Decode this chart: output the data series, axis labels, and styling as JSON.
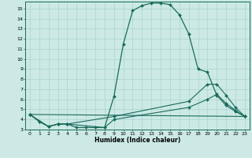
{
  "title": "",
  "xlabel": "Humidex (Indice chaleur)",
  "bg_color": "#cce9e6",
  "line_color": "#1a6b5a",
  "grid_color": "#aad4d0",
  "xlim": [
    -0.5,
    23.5
  ],
  "ylim": [
    3.0,
    15.7
  ],
  "yticks": [
    3,
    4,
    5,
    6,
    7,
    8,
    9,
    10,
    11,
    12,
    13,
    14,
    15
  ],
  "xticks": [
    0,
    1,
    2,
    3,
    4,
    5,
    6,
    7,
    8,
    9,
    10,
    11,
    12,
    13,
    14,
    15,
    16,
    17,
    18,
    19,
    20,
    21,
    22,
    23
  ],
  "curve1_x": [
    0,
    1,
    2,
    3,
    4,
    5,
    6,
    7,
    8,
    9,
    10,
    11,
    12,
    13,
    14,
    15,
    16,
    17,
    18,
    19,
    20,
    21,
    22,
    23
  ],
  "curve1_y": [
    4.5,
    3.8,
    3.3,
    3.55,
    3.55,
    3.2,
    3.2,
    3.2,
    3.2,
    6.3,
    11.5,
    14.8,
    15.3,
    15.55,
    15.55,
    15.4,
    14.4,
    12.5,
    9.0,
    8.7,
    6.4,
    5.4,
    4.8,
    4.3
  ],
  "curve2_x": [
    0,
    1,
    2,
    3,
    4,
    9,
    17,
    19,
    20,
    21,
    22,
    23
  ],
  "curve2_y": [
    4.5,
    3.8,
    3.3,
    3.55,
    3.55,
    4.3,
    5.8,
    7.5,
    7.5,
    6.4,
    5.2,
    4.3
  ],
  "curve3_x": [
    0,
    2,
    3,
    4,
    8,
    9,
    17,
    19,
    20,
    21,
    22,
    23
  ],
  "curve3_y": [
    4.5,
    3.3,
    3.55,
    3.55,
    3.2,
    4.0,
    5.2,
    6.0,
    6.5,
    5.6,
    4.9,
    4.3
  ],
  "curve4_x": [
    0,
    23
  ],
  "curve4_y": [
    4.5,
    4.3
  ]
}
